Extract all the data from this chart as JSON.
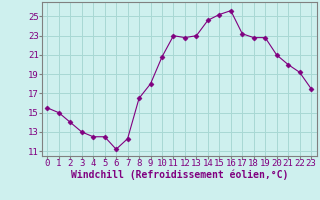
{
  "x_values": [
    0,
    1,
    2,
    3,
    4,
    5,
    6,
    7,
    8,
    9,
    10,
    11,
    12,
    13,
    14,
    15,
    16,
    17,
    18,
    19,
    20,
    21,
    22,
    23
  ],
  "y_values": [
    15.5,
    15.0,
    14.0,
    13.0,
    12.5,
    12.5,
    11.2,
    12.3,
    16.5,
    18.0,
    20.8,
    23.0,
    22.8,
    23.0,
    24.6,
    25.2,
    25.6,
    23.2,
    22.8,
    22.8,
    21.0,
    20.0,
    19.2,
    17.5
  ],
  "line_color": "#800080",
  "marker": "D",
  "marker_size": 2.5,
  "bg_color": "#cef0ee",
  "grid_color": "#a8d8d4",
  "axis_color": "#808080",
  "tick_color": "#800080",
  "xlabel": "Windchill (Refroidissement éolien,°C)",
  "ylim": [
    10.5,
    26.5
  ],
  "yticks": [
    11,
    13,
    15,
    17,
    19,
    21,
    23,
    25
  ],
  "xticks": [
    0,
    1,
    2,
    3,
    4,
    5,
    6,
    7,
    8,
    9,
    10,
    11,
    12,
    13,
    14,
    15,
    16,
    17,
    18,
    19,
    20,
    21,
    22,
    23
  ],
  "xlim": [
    -0.5,
    23.5
  ],
  "font_size": 6.5,
  "label_font_size": 7.0
}
